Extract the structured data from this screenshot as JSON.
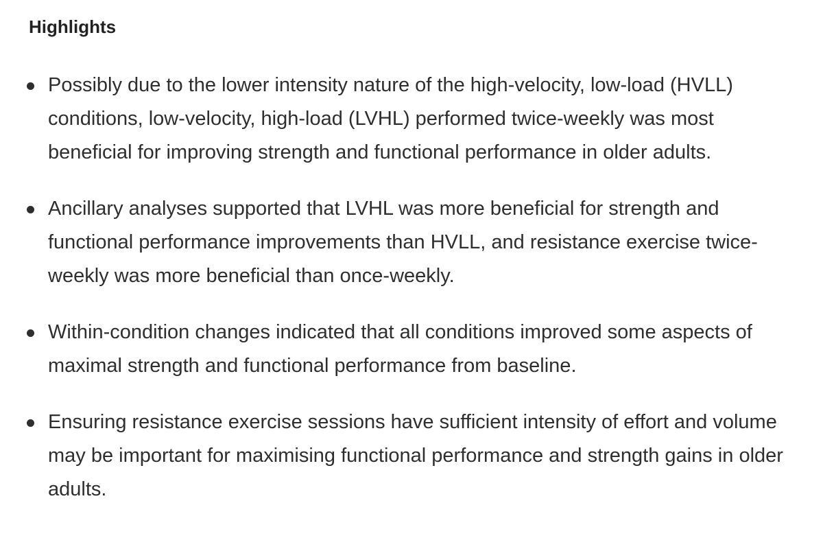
{
  "heading": "Highlights",
  "bullets": [
    "Possibly due to the lower intensity nature of the high-velocity, low-load (HVLL) conditions, low-velocity, high-load (LVHL) performed twice-weekly was most beneficial for improving strength and functional performance in older adults.",
    "Ancillary analyses supported that LVHL was more beneficial for strength and functional performance improvements than HVLL, and resistance exercise twice-weekly was more beneficial than once-weekly.",
    "Within-condition changes indicated that all conditions improved some aspects of maximal strength and functional performance from baseline.",
    "Ensuring resistance exercise sessions have sufficient intensity of effort and volume may be important for maximising functional performance and strength gains in older adults."
  ]
}
